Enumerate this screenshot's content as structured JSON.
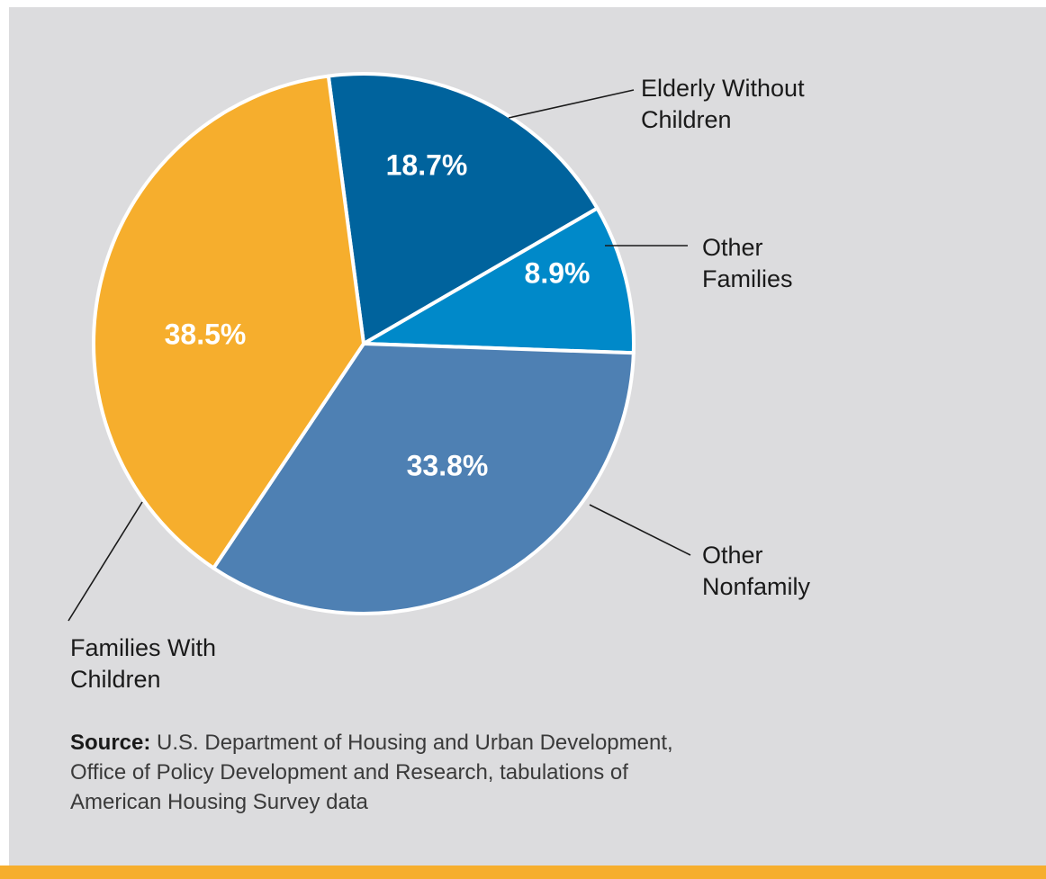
{
  "chart_data": {
    "type": "pie",
    "slices": [
      {
        "label": "Elderly Without Children",
        "label_lines": [
          "Elderly Without",
          "Children"
        ],
        "value": 18.7,
        "value_label": "18.7%",
        "color": "#00639d"
      },
      {
        "label": "Other Families",
        "label_lines": [
          "Other",
          "Families"
        ],
        "value": 8.9,
        "value_label": "8.9%",
        "color": "#0089c9"
      },
      {
        "label": "Other Nonfamily",
        "label_lines": [
          "Other",
          "Nonfamily"
        ],
        "value": 33.8,
        "value_label": "33.8%",
        "color": "#4e80b3"
      },
      {
        "label": "Families With Children",
        "label_lines": [
          "Families With",
          "Children"
        ],
        "value": 38.5,
        "value_label": "38.5%",
        "color": "#f6ae2d"
      }
    ],
    "unit": "%",
    "legend": "none"
  },
  "source": {
    "lead": "Source:",
    "lines": [
      " U.S. Department of Housing and Urban Development,",
      "Office of Policy Development and Research, tabulations of",
      "American Housing Survey data"
    ]
  },
  "colors": {
    "panel_background": "#dcdcde",
    "accent_bar": "#f6ae2d",
    "slice_border": "#ffffff"
  }
}
